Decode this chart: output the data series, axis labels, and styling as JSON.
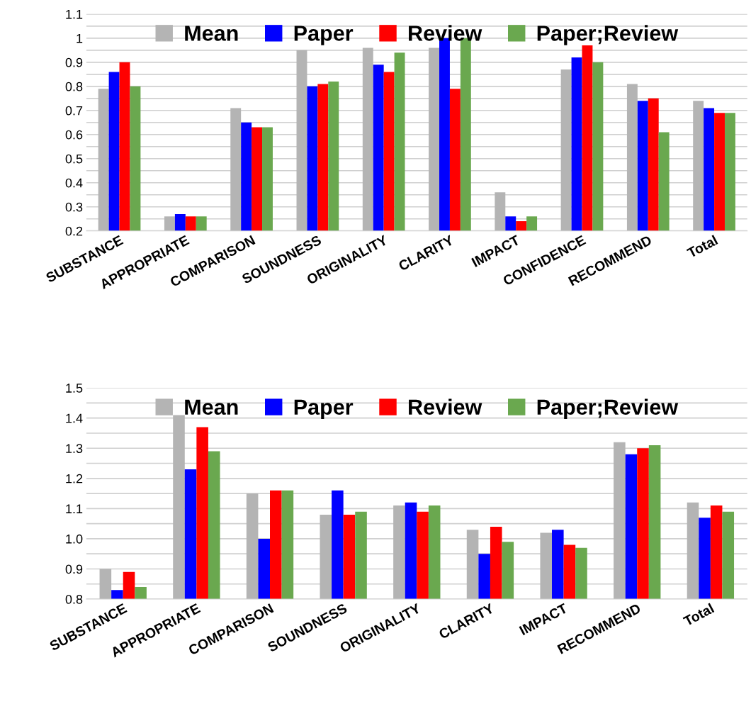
{
  "chart_data": [
    {
      "type": "bar",
      "categories": [
        "SUBSTANCE",
        "APPROPRIATE",
        "COMPARISON",
        "SOUNDNESS",
        "ORIGINALITY",
        "CLARITY",
        "IMPACT",
        "CONFIDENCE",
        "RECOMMEND",
        "Total"
      ],
      "series": [
        {
          "name": "Mean",
          "color": "#b4b4b4",
          "values": [
            0.79,
            0.26,
            0.71,
            0.95,
            0.96,
            0.96,
            0.36,
            0.87,
            0.81,
            0.74
          ]
        },
        {
          "name": "Paper",
          "color": "#0000ff",
          "values": [
            0.86,
            0.27,
            0.65,
            0.8,
            0.89,
            1.0,
            0.26,
            0.92,
            0.74,
            0.71
          ]
        },
        {
          "name": "Review",
          "color": "#ff0000",
          "values": [
            0.9,
            0.26,
            0.63,
            0.81,
            0.86,
            0.79,
            0.24,
            0.97,
            0.75,
            0.69
          ]
        },
        {
          "name": "Paper;Review",
          "color": "#6aa84f",
          "values": [
            0.8,
            0.26,
            0.63,
            0.82,
            0.94,
            1.0,
            0.26,
            0.9,
            0.61,
            0.69
          ]
        }
      ],
      "ylim": [
        0.2,
        1.1
      ],
      "yticks": [
        0.2,
        {
          "value": 0.25,
          "label": null
        },
        0.3,
        {
          "value": 0.35,
          "label": null
        },
        0.4,
        {
          "value": 0.45,
          "label": null
        },
        0.5,
        {
          "value": 0.55,
          "label": null
        },
        0.6,
        {
          "value": 0.65,
          "label": null
        },
        0.7,
        {
          "value": 0.75,
          "label": null
        },
        0.8,
        {
          "value": 0.85,
          "label": null
        },
        0.9,
        {
          "value": 0.95,
          "label": null
        },
        1,
        {
          "value": 1.05,
          "label": null
        },
        1.1
      ],
      "grid": "y",
      "legend": "top"
    },
    {
      "type": "bar",
      "categories": [
        "SUBSTANCE",
        "APPROPRIATE",
        "COMPARISON",
        "SOUNDNESS",
        "ORIGINALITY",
        "CLARITY",
        "IMPACT",
        "RECOMMEND",
        "Total"
      ],
      "series": [
        {
          "name": "Mean",
          "color": "#b4b4b4",
          "values": [
            0.9,
            1.41,
            1.15,
            1.08,
            1.11,
            1.03,
            1.02,
            1.32,
            1.12
          ]
        },
        {
          "name": "Paper",
          "color": "#0000ff",
          "values": [
            0.83,
            1.23,
            1.0,
            1.16,
            1.12,
            0.95,
            1.03,
            1.28,
            1.07
          ]
        },
        {
          "name": "Review",
          "color": "#ff0000",
          "values": [
            0.89,
            1.37,
            1.16,
            1.08,
            1.09,
            1.04,
            0.98,
            1.3,
            1.11
          ]
        },
        {
          "name": "Paper;Review",
          "color": "#6aa84f",
          "values": [
            0.84,
            1.29,
            1.16,
            1.09,
            1.11,
            0.99,
            0.97,
            1.31,
            1.09
          ]
        }
      ],
      "ylim": [
        0.8,
        1.5
      ],
      "yticks": [
        0.8,
        {
          "value": 0.85,
          "label": null
        },
        0.9,
        {
          "value": 0.95,
          "label": null
        },
        {
          "value": 1.0,
          "label": "1.0"
        },
        {
          "value": 1.05,
          "label": null
        },
        1.1,
        {
          "value": 1.15,
          "label": null
        },
        1.2,
        {
          "value": 1.25,
          "label": null
        },
        1.3,
        {
          "value": 1.35,
          "label": null
        },
        1.4,
        {
          "value": 1.45,
          "label": null
        },
        1.5
      ],
      "grid": "y",
      "legend": "top"
    }
  ]
}
